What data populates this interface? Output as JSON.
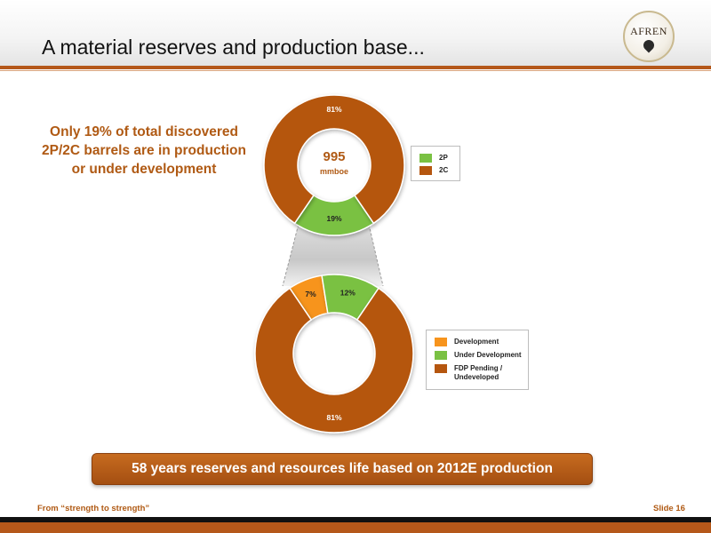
{
  "slide": {
    "title": "A material reserves and production base...",
    "logo_text": "AFREN",
    "callout": "Only 19% of total discovered 2P/2C barrels are in production or under development",
    "banner": "58 years reserves and resources life based on 2012E production",
    "footer_left": "From “strength to strength”",
    "footer_right": "Slide 16"
  },
  "chart_data": [
    {
      "type": "pie",
      "variant": "donut",
      "center_value": "995",
      "center_unit": "mmboe",
      "categories": [
        "2P",
        "2C"
      ],
      "values": [
        19,
        81
      ],
      "labels": [
        "19%",
        "81%"
      ],
      "colors": [
        "#7ac143",
        "#b5560f"
      ],
      "legend_position": "right"
    },
    {
      "type": "pie",
      "variant": "donut",
      "categories": [
        "Development",
        "Under Development",
        "FDP Pending / Undeveloped"
      ],
      "values": [
        7,
        12,
        81
      ],
      "labels": [
        "7%",
        "12%",
        "81%"
      ],
      "colors": [
        "#f7941d",
        "#7ac143",
        "#b5560f"
      ],
      "legend_position": "right"
    }
  ]
}
